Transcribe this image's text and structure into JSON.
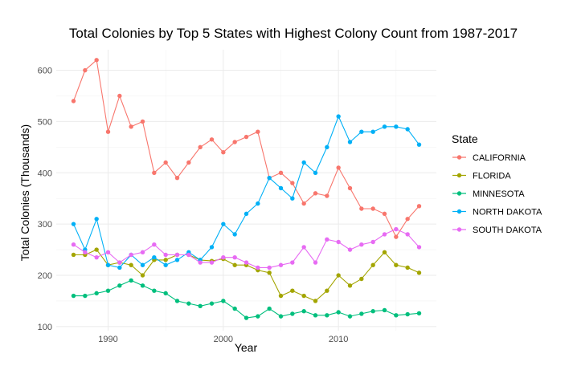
{
  "chart_data": {
    "type": "line",
    "title": "Total Colonies by Top 5 States with Highest Colony Count from 1987-2017",
    "xlabel": "Year",
    "ylabel": "Total Colonies (Thousands)",
    "xlim": [
      1985.5,
      2018.5
    ],
    "ylim": [
      92,
      640
    ],
    "xticks": [
      1990,
      2000,
      2010
    ],
    "yticks": [
      100,
      200,
      300,
      400,
      500,
      600
    ],
    "grid": true,
    "legend": {
      "title": "State",
      "position": "right"
    },
    "x": [
      1987,
      1988,
      1989,
      1990,
      1991,
      1992,
      1993,
      1994,
      1995,
      1996,
      1997,
      1998,
      1999,
      2000,
      2001,
      2002,
      2003,
      2004,
      2005,
      2006,
      2007,
      2008,
      2009,
      2010,
      2011,
      2012,
      2013,
      2014,
      2015,
      2016,
      2017
    ],
    "series": [
      {
        "name": "CALIFORNIA",
        "color": "#F8766D",
        "values": [
          540,
          600,
          620,
          480,
          550,
          490,
          500,
          400,
          420,
          390,
          420,
          450,
          465,
          440,
          460,
          470,
          480,
          390,
          400,
          380,
          340,
          360,
          355,
          410,
          370,
          330,
          330,
          320,
          275,
          310,
          335
        ]
      },
      {
        "name": "FLORIDA",
        "color": "#A3A500",
        "values": [
          240,
          240,
          250,
          220,
          225,
          220,
          200,
          230,
          230,
          240,
          240,
          230,
          228,
          232,
          220,
          220,
          210,
          205,
          160,
          170,
          160,
          150,
          170,
          200,
          180,
          193,
          220,
          245,
          220,
          215,
          205
        ]
      },
      {
        "name": "MINNESOTA",
        "color": "#00BF7D",
        "values": [
          160,
          160,
          165,
          170,
          180,
          190,
          180,
          170,
          165,
          150,
          145,
          140,
          145,
          150,
          135,
          117,
          120,
          135,
          120,
          125,
          130,
          122,
          122,
          128,
          120,
          125,
          130,
          132,
          122,
          124,
          126
        ]
      },
      {
        "name": "NORTH DAKOTA",
        "color": "#00B0F6",
        "values": [
          300,
          250,
          310,
          220,
          215,
          240,
          220,
          235,
          220,
          230,
          245,
          230,
          255,
          300,
          280,
          320,
          340,
          390,
          370,
          350,
          420,
          400,
          450,
          510,
          460,
          480,
          480,
          490,
          490,
          485,
          455
        ]
      },
      {
        "name": "SOUTH DAKOTA",
        "color": "#E76BF3",
        "values": [
          260,
          245,
          235,
          245,
          225,
          240,
          245,
          260,
          240,
          240,
          240,
          225,
          225,
          235,
          235,
          225,
          215,
          215,
          220,
          225,
          255,
          225,
          270,
          265,
          250,
          260,
          265,
          280,
          290,
          280,
          255
        ]
      }
    ]
  }
}
